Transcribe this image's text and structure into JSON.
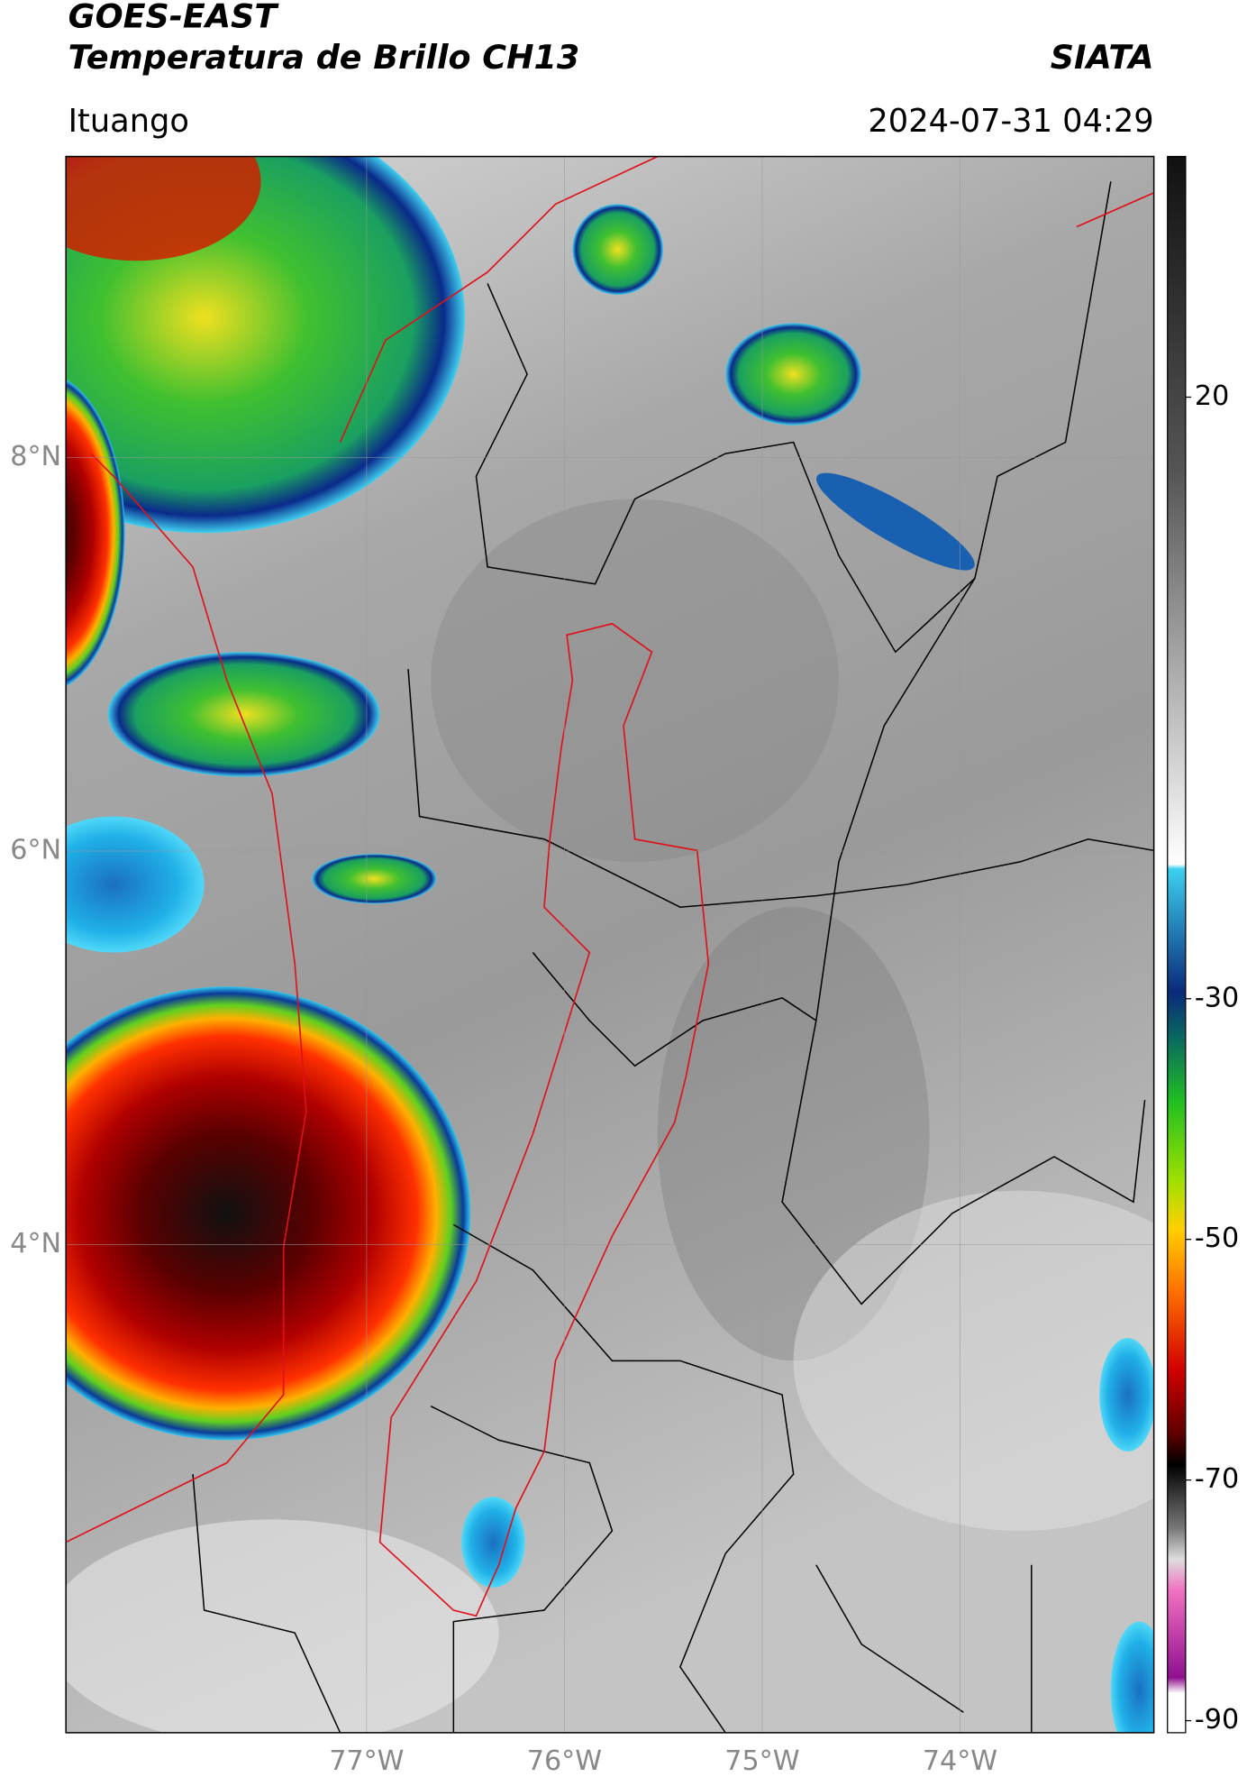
{
  "header": {
    "title": "GOES-EAST",
    "subtitle": "Temperatura de Brillo CH13",
    "brand": "SIATA",
    "location": "Ituango",
    "datetime": "2024-07-31 04:29"
  },
  "map": {
    "xlim": [
      -78.52,
      -73.02
    ],
    "ylim": [
      1.52,
      9.53
    ],
    "xticks": [
      {
        "value": -77,
        "label": "77°W"
      },
      {
        "value": -76,
        "label": "76°W"
      },
      {
        "value": -75,
        "label": "75°W"
      },
      {
        "value": -74,
        "label": "74°W"
      }
    ],
    "yticks": [
      {
        "value": 8,
        "label": "8°N"
      },
      {
        "value": 6,
        "label": "6°N"
      },
      {
        "value": 4,
        "label": "4°N"
      }
    ],
    "grid": true
  },
  "colorbar": {
    "lim": [
      -91,
      40
    ],
    "ticks": [
      20,
      -30,
      -50,
      -70,
      -90
    ]
  }
}
